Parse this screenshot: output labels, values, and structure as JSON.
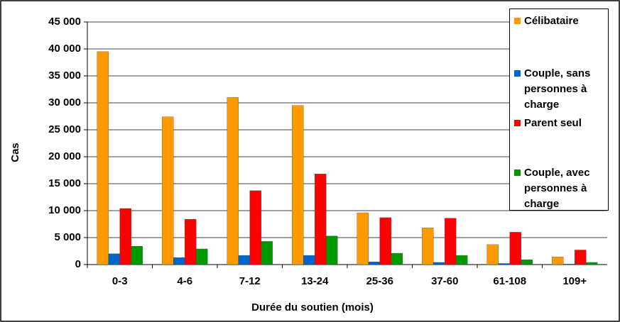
{
  "chart_data": {
    "type": "bar",
    "x_label": "Durée du soutien (mois)",
    "y_label": "Cas",
    "categories": [
      "0-3",
      "4-6",
      "7-12",
      "13-24",
      "25-36",
      "37-60",
      "61-108",
      "109+"
    ],
    "series": [
      {
        "name": "Célibataire",
        "color": "#ff9900",
        "values": [
          39500,
          27400,
          31000,
          29500,
          9600,
          6800,
          3700,
          1400
        ]
      },
      {
        "name": "Couple, sans personnes à charge",
        "color": "#0066cc",
        "values": [
          2000,
          1300,
          1700,
          1700,
          500,
          400,
          200,
          100
        ]
      },
      {
        "name": "Parent seul",
        "color": "#ff0000",
        "values": [
          10400,
          8400,
          13700,
          16800,
          8700,
          8600,
          6000,
          2700
        ]
      },
      {
        "name": "Couple, avec personnes à charge",
        "color": "#009900",
        "values": [
          3400,
          2900,
          4300,
          5300,
          2100,
          1700,
          900,
          400
        ]
      }
    ],
    "ylim": [
      0,
      45000
    ],
    "yticks": [
      0,
      {
        "value": 5000,
        "label": "5 000"
      },
      {
        "value": 10000,
        "label": "10 000"
      },
      {
        "value": 15000,
        "label": "15 000"
      },
      {
        "value": 20000,
        "label": "20 000"
      },
      {
        "value": 25000,
        "label": "25 000"
      },
      {
        "value": 30000,
        "label": "30 000"
      },
      {
        "value": 35000,
        "label": "35 000"
      },
      {
        "value": 40000,
        "label": "40 000"
      },
      {
        "value": 45000,
        "label": "45 000"
      }
    ],
    "grid": true,
    "legend": "right"
  }
}
